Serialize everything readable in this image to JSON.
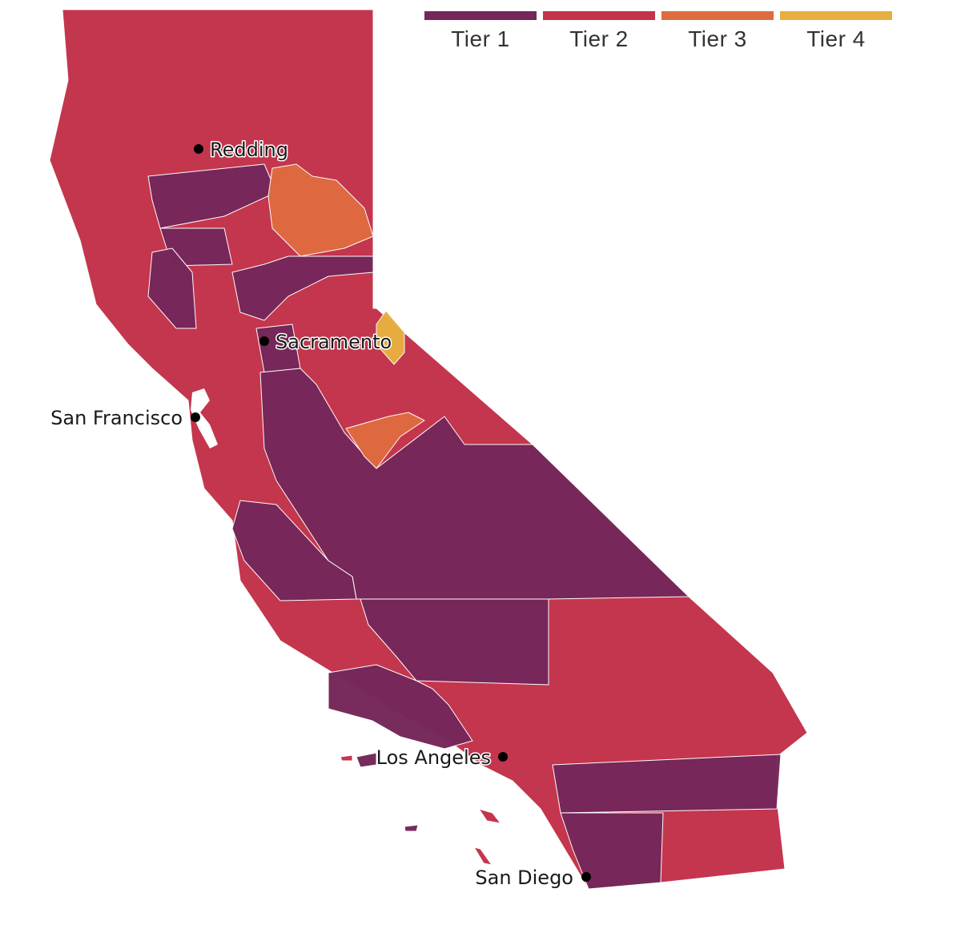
{
  "legend": {
    "items": [
      {
        "label": "Tier 1",
        "color": "#76275a"
      },
      {
        "label": "Tier 2",
        "color": "#c3334a"
      },
      {
        "label": "Tier 3",
        "color": "#df6b40"
      },
      {
        "label": "Tier 4",
        "color": "#e7af40"
      }
    ]
  },
  "cities": {
    "redding": "Redding",
    "sacramento": "Sacramento",
    "san_francisco": "San Francisco",
    "los_angeles": "Los Angeles",
    "san_diego": "San Diego"
  }
}
